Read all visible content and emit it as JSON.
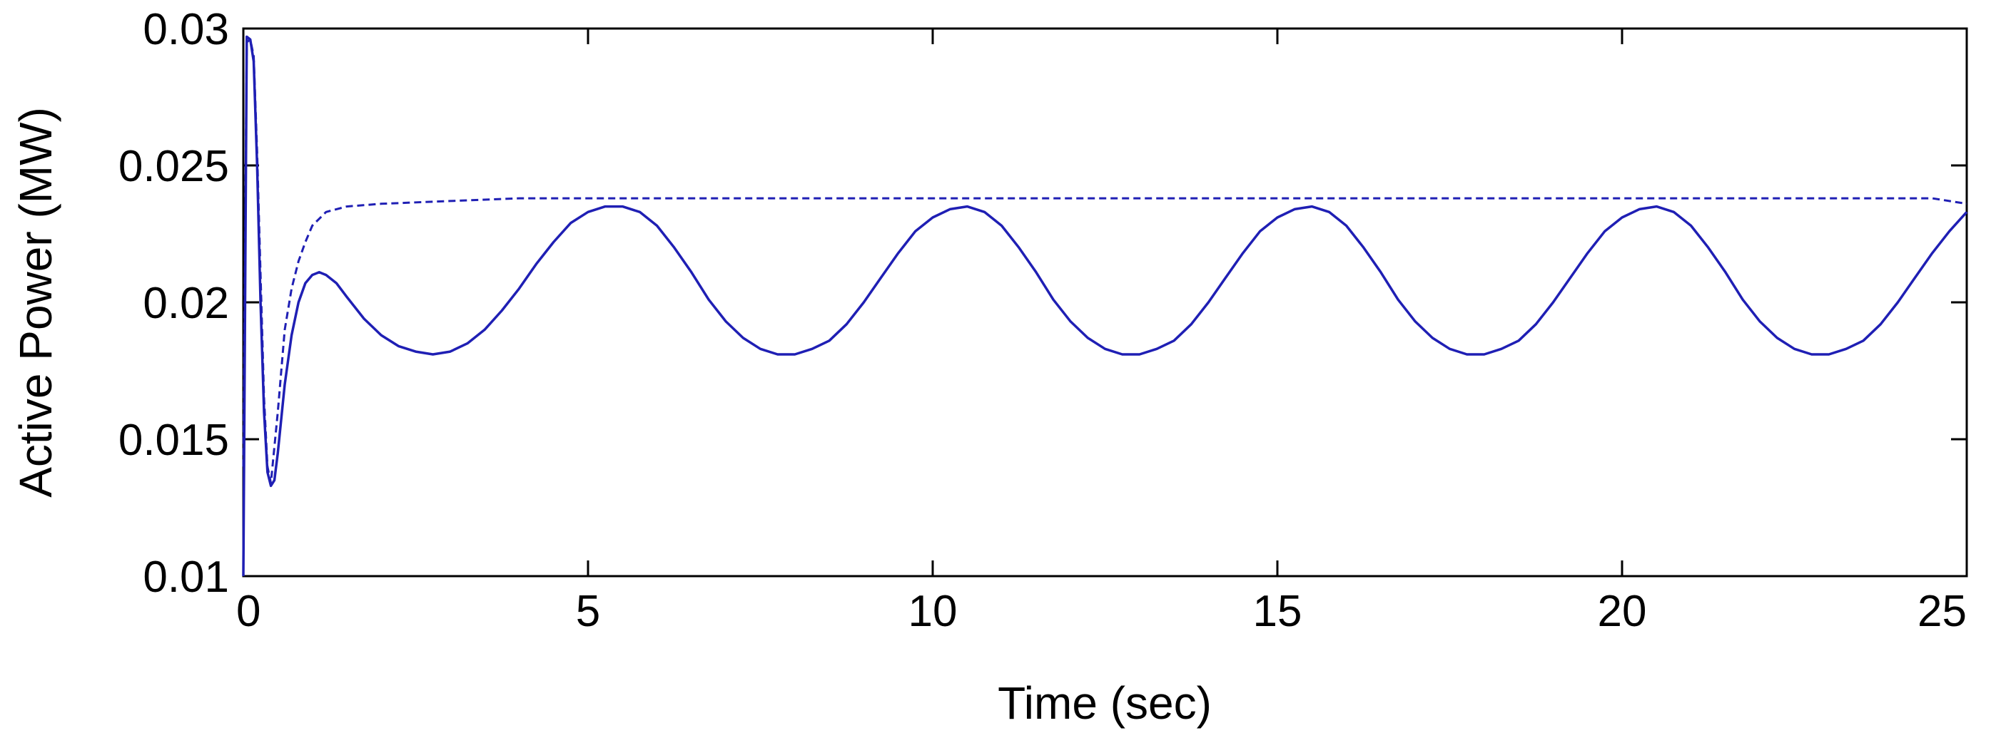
{
  "chart_data": {
    "type": "line",
    "title": "",
    "xlabel": "Time (sec)",
    "ylabel": "Active Power (MW)",
    "xlim": [
      0,
      25
    ],
    "ylim": [
      0.01,
      0.03
    ],
    "xticks": [
      0,
      5,
      10,
      15,
      20,
      25
    ],
    "xtick_labels": [
      "0",
      "5",
      "10",
      "15",
      "20",
      "25"
    ],
    "yticks": [
      0.01,
      0.015,
      0.02,
      0.025,
      0.03
    ],
    "ytick_labels": [
      "0.01",
      "0.015",
      "0.02",
      "0.025",
      "0.03"
    ],
    "grid": false,
    "legend": "none",
    "series": [
      {
        "style": "dashed",
        "color": "#1f1fb4",
        "x": [
          0,
          0.05,
          0.1,
          0.15,
          0.2,
          0.25,
          0.3,
          0.35,
          0.4,
          0.5,
          0.6,
          0.7,
          0.8,
          0.9,
          1.0,
          1.2,
          1.5,
          2.0,
          3.0,
          4.0,
          5.0,
          7.0,
          10.0,
          15.0,
          20.0,
          24.5,
          25.0
        ],
        "y": [
          0.014,
          0.0295,
          0.0296,
          0.029,
          0.0255,
          0.021,
          0.0165,
          0.014,
          0.0134,
          0.016,
          0.019,
          0.0205,
          0.0215,
          0.0222,
          0.0228,
          0.0233,
          0.0235,
          0.0236,
          0.0237,
          0.0238,
          0.0238,
          0.0238,
          0.0238,
          0.0238,
          0.0238,
          0.0238,
          0.0236
        ]
      },
      {
        "style": "solid",
        "color": "#1f1fb4",
        "x": [
          0,
          0.05,
          0.1,
          0.15,
          0.2,
          0.25,
          0.3,
          0.35,
          0.4,
          0.45,
          0.5,
          0.6,
          0.7,
          0.8,
          0.9,
          1.0,
          1.1,
          1.2,
          1.35,
          1.5,
          1.75,
          2.0,
          2.25,
          2.5,
          2.75,
          3.0,
          3.25,
          3.5,
          3.75,
          4.0,
          4.25,
          4.5,
          4.75,
          5.0,
          5.25,
          5.5,
          5.75,
          6.0,
          6.25,
          6.5,
          6.75,
          7.0,
          7.25,
          7.5,
          7.75,
          8.0,
          8.25,
          8.5,
          8.75,
          9.0,
          9.25,
          9.5,
          9.75,
          10.0,
          10.25,
          10.5,
          10.75,
          11.0,
          11.25,
          11.5,
          11.75,
          12.0,
          12.25,
          12.5,
          12.75,
          13.0,
          13.25,
          13.5,
          13.75,
          14.0,
          14.25,
          14.5,
          14.75,
          15.0,
          15.25,
          15.5,
          15.75,
          16.0,
          16.25,
          16.5,
          16.75,
          17.0,
          17.25,
          17.5,
          17.75,
          18.0,
          18.25,
          18.5,
          18.75,
          19.0,
          19.25,
          19.5,
          19.75,
          20.0,
          20.25,
          20.5,
          20.75,
          21.0,
          21.25,
          21.5,
          21.75,
          22.0,
          22.25,
          22.5,
          22.75,
          23.0,
          23.25,
          23.5,
          23.75,
          24.0,
          24.25,
          24.5,
          24.75,
          25.0
        ],
        "y": [
          0.01,
          0.0297,
          0.0296,
          0.0288,
          0.025,
          0.02,
          0.016,
          0.0138,
          0.0133,
          0.0135,
          0.0145,
          0.017,
          0.0188,
          0.02,
          0.0207,
          0.021,
          0.0211,
          0.021,
          0.0207,
          0.0202,
          0.0194,
          0.0188,
          0.0184,
          0.0182,
          0.0181,
          0.0182,
          0.0185,
          0.019,
          0.0197,
          0.0205,
          0.0214,
          0.0222,
          0.0229,
          0.0233,
          0.0235,
          0.0235,
          0.0233,
          0.0228,
          0.022,
          0.0211,
          0.0201,
          0.0193,
          0.0187,
          0.0183,
          0.0181,
          0.0181,
          0.0183,
          0.0186,
          0.0192,
          0.02,
          0.0209,
          0.0218,
          0.0226,
          0.0231,
          0.0234,
          0.0235,
          0.0233,
          0.0228,
          0.022,
          0.0211,
          0.0201,
          0.0193,
          0.0187,
          0.0183,
          0.0181,
          0.0181,
          0.0183,
          0.0186,
          0.0192,
          0.02,
          0.0209,
          0.0218,
          0.0226,
          0.0231,
          0.0234,
          0.0235,
          0.0233,
          0.0228,
          0.022,
          0.0211,
          0.0201,
          0.0193,
          0.0187,
          0.0183,
          0.0181,
          0.0181,
          0.0183,
          0.0186,
          0.0192,
          0.02,
          0.0209,
          0.0218,
          0.0226,
          0.0231,
          0.0234,
          0.0235,
          0.0233,
          0.0228,
          0.022,
          0.0211,
          0.0201,
          0.0193,
          0.0187,
          0.0183,
          0.0181,
          0.0181,
          0.0183,
          0.0186,
          0.0192,
          0.02,
          0.0209,
          0.0218,
          0.0226,
          0.0233
        ]
      }
    ]
  }
}
